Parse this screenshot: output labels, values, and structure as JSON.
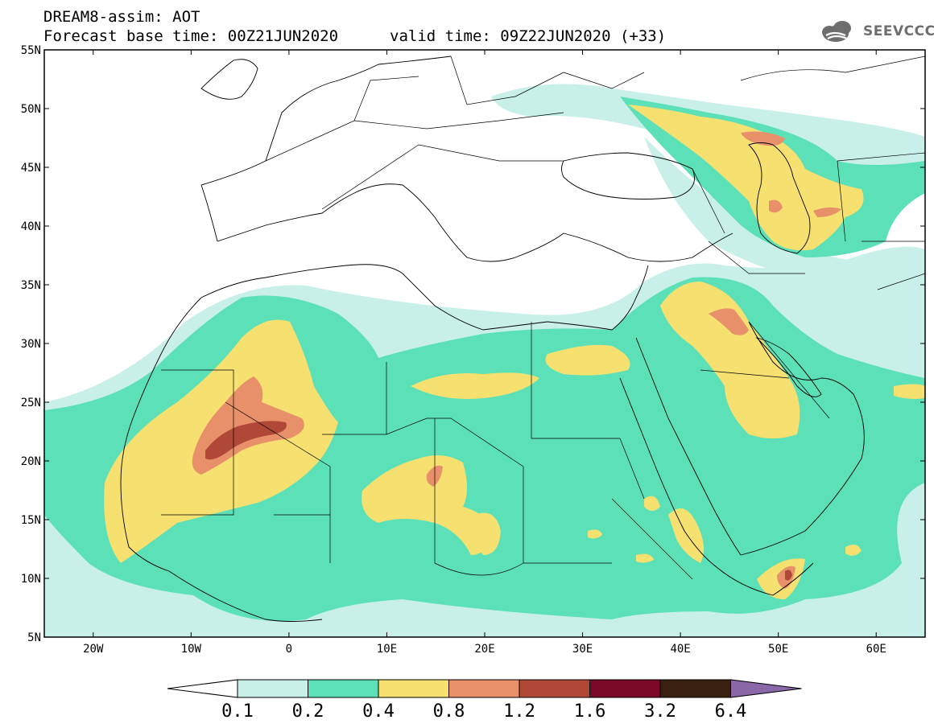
{
  "header": {
    "title_line1": "DREAM8-assim: AOT",
    "title_line2": "Forecast base time: 00Z21JUN2020",
    "valid_time": "valid time: 09Z22JUN2020 (+33)",
    "logo_text": "SEEVCCC"
  },
  "map": {
    "lon_range": [
      -25,
      65
    ],
    "lat_range": [
      5,
      55
    ],
    "lat_labels": [
      "5N",
      "10N",
      "15N",
      "20N",
      "25N",
      "30N",
      "35N",
      "40N",
      "45N",
      "50N",
      "55N"
    ],
    "lon_labels": [
      "20W",
      "10W",
      "0",
      "10E",
      "20E",
      "30E",
      "40E",
      "50E",
      "60E"
    ]
  },
  "colorbar": {
    "labels": [
      "0.1",
      "0.2",
      "0.4",
      "0.8",
      "1.2",
      "1.6",
      "3.2",
      "6.4"
    ],
    "colors": [
      "#c8f0e8",
      "#5ce0b8",
      "#f5e070",
      "#e8906a",
      "#b04838",
      "#7a0a28",
      "#3a2010",
      "#8a68a8"
    ]
  }
}
